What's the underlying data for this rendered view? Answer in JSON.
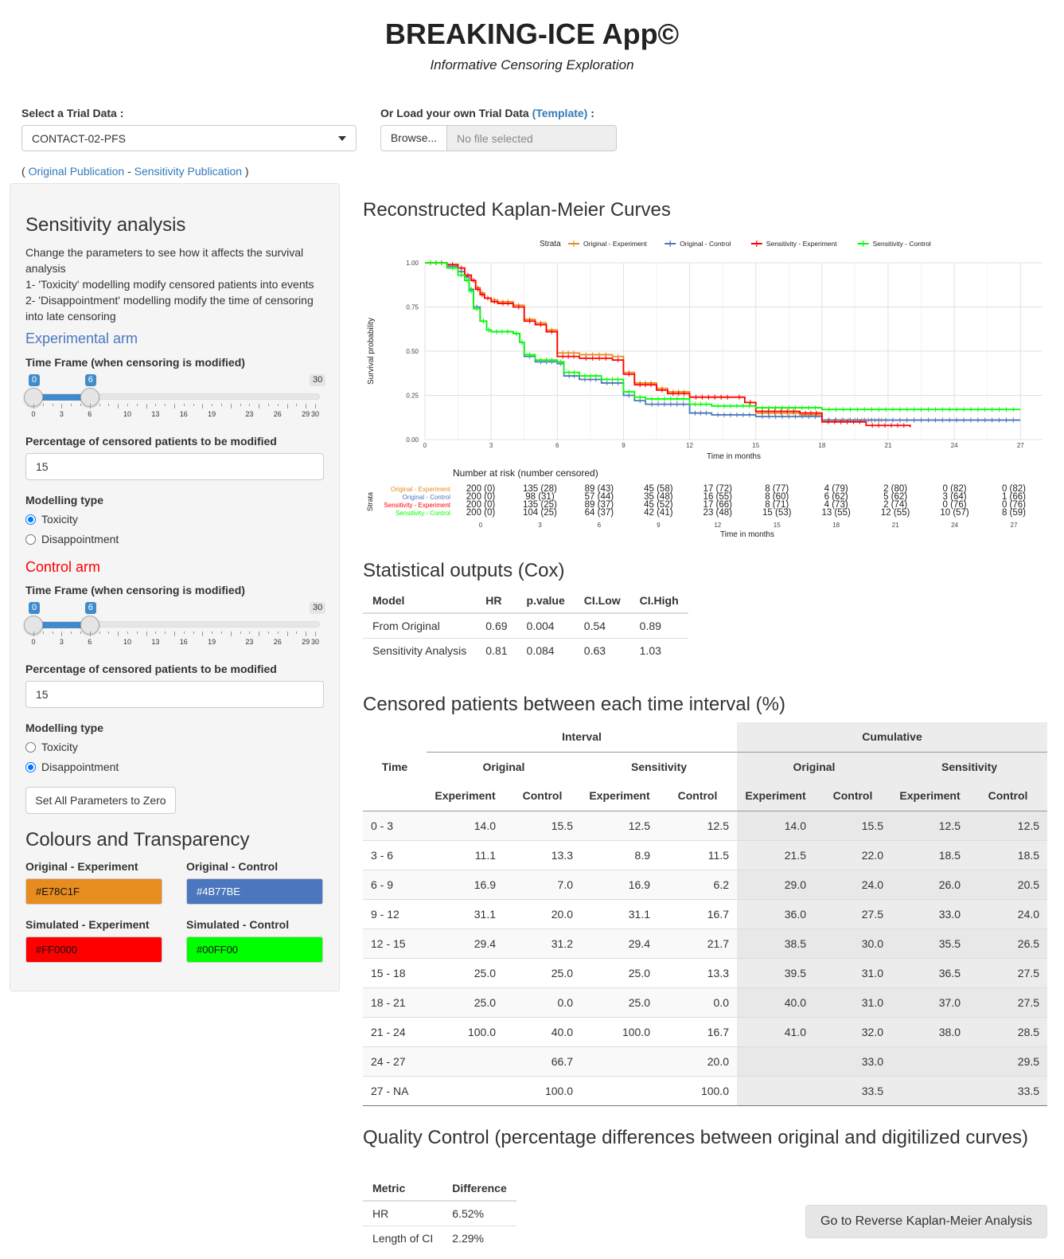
{
  "header": {
    "title": "BREAKING-ICE App©",
    "subtitle": "Informative Censoring Exploration"
  },
  "data_select": {
    "label": "Select a Trial Data :",
    "value": "CONTACT-02-PFS",
    "load_label_prefix": "Or Load your own Trial Data ",
    "template_link": "(Template)",
    "load_label_suffix": " :",
    "browse_label": "Browse...",
    "file_placeholder": "No file selected"
  },
  "publications": {
    "open": "( ",
    "original": "Original Publication",
    "sep": " - ",
    "sensitivity": "Sensitivity Publication",
    "close": " )"
  },
  "sidebar": {
    "title": "Sensitivity analysis",
    "desc1": "Change the parameters to see how it affects the survival analysis",
    "desc2": "1- 'Toxicity' modelling modify censored patients into events",
    "desc3": "2- 'Disappointment' modelling modify the time of censoring into late censoring",
    "ticks": [
      "0",
      "3",
      "6",
      "10",
      "13",
      "16",
      "19",
      "23",
      "26",
      "29",
      "30"
    ],
    "experimental": {
      "title": "Experimental arm",
      "timeframe_label": "Time Frame (when censoring is modified)",
      "slider_from": 0,
      "slider_to": 6,
      "slider_from_label": "0",
      "slider_to_label": "6",
      "slider_max_label": "30",
      "pct_label": "Percentage of censored patients to be modified",
      "pct_value": "15",
      "modelling_label": "Modelling type",
      "opt_toxicity": "Toxicity",
      "opt_disappointment": "Disappointment",
      "selected": "Toxicity"
    },
    "control": {
      "title": "Control arm",
      "timeframe_label": "Time Frame (when censoring is modified)",
      "slider_from": 0,
      "slider_to": 6,
      "slider_from_label": "0",
      "slider_to_label": "6",
      "slider_max_label": "30",
      "pct_label": "Percentage of censored patients to be modified",
      "pct_value": "15",
      "modelling_label": "Modelling type",
      "opt_toxicity": "Toxicity",
      "opt_disappointment": "Disappointment",
      "selected": "Disappointment"
    },
    "reset_button": "Set All Parameters to Zero",
    "colours": {
      "title": "Colours and Transparency",
      "orig_exp_label": "Original - Experiment",
      "orig_exp_value": "#E78C1F",
      "orig_ctl_label": "Original - Control",
      "orig_ctl_value": "#4B77BE",
      "sim_exp_label": "Simulated - Experiment",
      "sim_exp_value": "#FF0000",
      "sim_ctl_label": "Simulated - Control",
      "sim_ctl_value": "#00FF00"
    }
  },
  "km": {
    "title": "Reconstructed Kaplan-Meier Curves",
    "chart_data": {
      "type": "line",
      "legend_title": "Strata",
      "legend_position": "top",
      "xlabel": "Time in months",
      "ylabel": "Survival probability",
      "xlim": [
        0,
        28
      ],
      "ylim": [
        0,
        1
      ],
      "x_ticks": [
        0,
        3,
        6,
        9,
        12,
        15,
        18,
        21,
        24,
        27
      ],
      "y_ticks": [
        "0.00",
        "0.25",
        "0.50",
        "0.75",
        "1.00"
      ],
      "grid": true,
      "series": [
        {
          "name": "Original - Experiment",
          "color": "#E78C1F",
          "x": [
            0,
            1,
            1.5,
            1.8,
            2.1,
            2.3,
            2.5,
            2.7,
            3,
            3.3,
            4,
            4.5,
            5,
            5.5,
            6,
            7,
            8.5,
            9,
            9.5,
            10.5,
            11,
            12,
            14,
            14.5,
            15,
            17,
            18,
            21
          ],
          "y": [
            1.0,
            0.99,
            0.97,
            0.93,
            0.9,
            0.86,
            0.83,
            0.8,
            0.79,
            0.78,
            0.76,
            0.68,
            0.66,
            0.62,
            0.49,
            0.48,
            0.47,
            0.38,
            0.32,
            0.29,
            0.27,
            0.24,
            0.24,
            0.21,
            0.15,
            0.14,
            0.11,
            0.11
          ]
        },
        {
          "name": "Original - Control",
          "color": "#4B77BE",
          "x": [
            0,
            1,
            1.5,
            1.8,
            2.0,
            2.2,
            2.5,
            2.8,
            3,
            4,
            4.3,
            4.5,
            5,
            6,
            6.3,
            7,
            8,
            9,
            9.5,
            10,
            12,
            13,
            15,
            18,
            27
          ],
          "y": [
            1.0,
            0.98,
            0.95,
            0.92,
            0.85,
            0.75,
            0.67,
            0.62,
            0.61,
            0.6,
            0.55,
            0.47,
            0.44,
            0.43,
            0.36,
            0.34,
            0.32,
            0.25,
            0.22,
            0.2,
            0.15,
            0.14,
            0.13,
            0.11,
            0.11
          ]
        },
        {
          "name": "Sensitivity - Experiment",
          "color": "#FF0000",
          "x": [
            0,
            1,
            1.5,
            1.8,
            2.1,
            2.3,
            2.5,
            2.7,
            3,
            3.3,
            4,
            4.5,
            5,
            5.5,
            6,
            7,
            8.5,
            9,
            9.5,
            10.5,
            11,
            12,
            14,
            14.5,
            15,
            17,
            18,
            20,
            22
          ],
          "y": [
            1.0,
            0.99,
            0.97,
            0.93,
            0.9,
            0.85,
            0.82,
            0.8,
            0.78,
            0.77,
            0.75,
            0.67,
            0.65,
            0.61,
            0.47,
            0.46,
            0.45,
            0.37,
            0.31,
            0.28,
            0.26,
            0.24,
            0.24,
            0.21,
            0.16,
            0.15,
            0.1,
            0.08,
            0.07
          ]
        },
        {
          "name": "Sensitivity - Control",
          "color": "#00FF00",
          "x": [
            0,
            1,
            1.5,
            1.8,
            2.0,
            2.2,
            2.5,
            2.8,
            3,
            4,
            4.3,
            4.5,
            5,
            6,
            6.3,
            7,
            8,
            9,
            9.5,
            10,
            12,
            13,
            15,
            18,
            27
          ],
          "y": [
            1.0,
            0.97,
            0.93,
            0.9,
            0.84,
            0.74,
            0.67,
            0.62,
            0.61,
            0.6,
            0.55,
            0.48,
            0.45,
            0.44,
            0.38,
            0.36,
            0.34,
            0.27,
            0.24,
            0.23,
            0.2,
            0.19,
            0.18,
            0.17,
            0.17
          ]
        }
      ]
    },
    "risk_table": {
      "title": "Number at risk (number censored)",
      "strata_label": "Strata",
      "xlabel": "Time in months",
      "x_ticks": [
        "0",
        "3",
        "6",
        "9",
        "12",
        "15",
        "18",
        "21",
        "24",
        "27"
      ],
      "rows": [
        {
          "name": "Original - Experiment",
          "color": "#E78C1F",
          "values": [
            "200 (0)",
            "135 (28)",
            "89 (43)",
            "45 (58)",
            "17 (72)",
            "8 (77)",
            "4 (79)",
            "2 (80)",
            "0 (82)",
            "0 (82)"
          ]
        },
        {
          "name": "Original - Control",
          "color": "#4B77BE",
          "values": [
            "200 (0)",
            "98 (31)",
            "57 (44)",
            "35 (48)",
            "16 (55)",
            "8 (60)",
            "6 (62)",
            "5 (62)",
            "3 (64)",
            "1 (66)"
          ]
        },
        {
          "name": "Sensitivity - Experiment",
          "color": "#FF0000",
          "values": [
            "200 (0)",
            "135 (25)",
            "89 (37)",
            "45 (52)",
            "17 (66)",
            "8 (71)",
            "4 (73)",
            "2 (74)",
            "0 (76)",
            "0 (76)"
          ]
        },
        {
          "name": "Sensitivity - Control",
          "color": "#00FF00",
          "values": [
            "200 (0)",
            "104 (25)",
            "64 (37)",
            "42 (41)",
            "23 (48)",
            "15 (53)",
            "13 (55)",
            "12 (55)",
            "10 (57)",
            "8 (59)"
          ]
        }
      ]
    }
  },
  "cox": {
    "title": "Statistical outputs (Cox)",
    "headers": [
      "Model",
      "HR",
      "p.value",
      "CI.Low",
      "CI.High"
    ],
    "rows": [
      [
        "From Original",
        "0.69",
        "0.004",
        "0.54",
        "0.89"
      ],
      [
        "Sensitivity Analysis",
        "0.81",
        "0.084",
        "0.63",
        "1.03"
      ]
    ]
  },
  "censored": {
    "title": "Censored patients between each time interval (%)",
    "time_header": "Time",
    "interval_header": "Interval",
    "cumulative_header": "Cumulative",
    "original_header": "Original",
    "sensitivity_header": "Sensitivity",
    "experiment_header": "Experiment",
    "control_header": "Control",
    "rows": [
      [
        "0 - 3",
        "14.0",
        "15.5",
        "12.5",
        "12.5",
        "14.0",
        "15.5",
        "12.5",
        "12.5"
      ],
      [
        "3 - 6",
        "11.1",
        "13.3",
        "8.9",
        "11.5",
        "21.5",
        "22.0",
        "18.5",
        "18.5"
      ],
      [
        "6 - 9",
        "16.9",
        "7.0",
        "16.9",
        "6.2",
        "29.0",
        "24.0",
        "26.0",
        "20.5"
      ],
      [
        "9 - 12",
        "31.1",
        "20.0",
        "31.1",
        "16.7",
        "36.0",
        "27.5",
        "33.0",
        "24.0"
      ],
      [
        "12 - 15",
        "29.4",
        "31.2",
        "29.4",
        "21.7",
        "38.5",
        "30.0",
        "35.5",
        "26.5"
      ],
      [
        "15 - 18",
        "25.0",
        "25.0",
        "25.0",
        "13.3",
        "39.5",
        "31.0",
        "36.5",
        "27.5"
      ],
      [
        "18 - 21",
        "25.0",
        "0.0",
        "25.0",
        "0.0",
        "40.0",
        "31.0",
        "37.0",
        "27.5"
      ],
      [
        "21 - 24",
        "100.0",
        "40.0",
        "100.0",
        "16.7",
        "41.0",
        "32.0",
        "38.0",
        "28.5"
      ],
      [
        "24 - 27",
        "",
        "66.7",
        "",
        "20.0",
        "",
        "33.0",
        "",
        "29.5"
      ],
      [
        "27 - NA",
        "",
        "100.0",
        "",
        "100.0",
        "",
        "33.5",
        "",
        "33.5"
      ]
    ]
  },
  "qc": {
    "title": "Quality Control (percentage differences between original and digitilized curves)",
    "headers": [
      "Metric",
      "Difference"
    ],
    "rows": [
      [
        "HR",
        "6.52%"
      ],
      [
        "Length of CI",
        "2.29%"
      ]
    ]
  },
  "go_button": "Go to Reverse Kaplan-Meier Analysis"
}
